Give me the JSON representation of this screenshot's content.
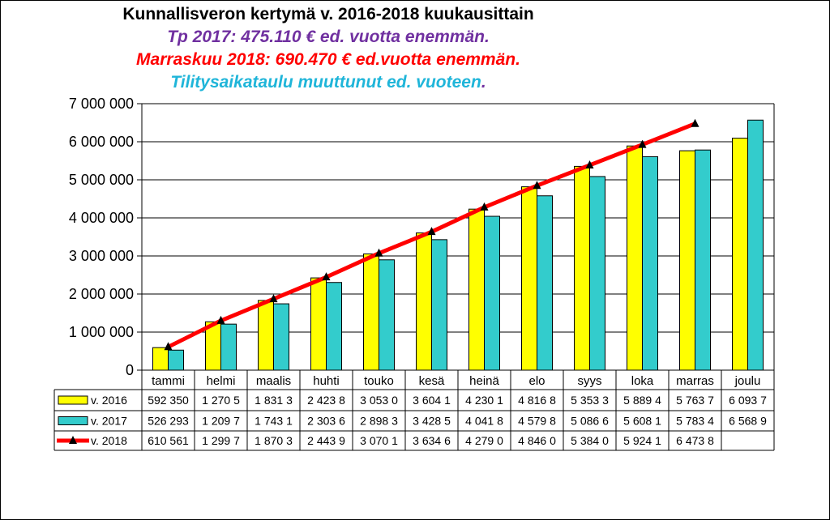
{
  "colors": {
    "series_2016": "#ffff00",
    "series_2017": "#33cccc",
    "series_2018_line": "#ff0000",
    "subtitle_1": "#7030a0",
    "subtitle_2": "#ff0000",
    "subtitle_3": "#1fb5d9"
  },
  "chart_data": {
    "type": "bar",
    "title": "Kunnallisveron kertymä v. 2016-2018 kuukausittain",
    "subtitles": [
      "Tp 2017: 475.110 € ed. vuotta enemmän.",
      "Marraskuu 2018: 690.470 € ed.vuotta enemmän.",
      "Tilitysaikataulu muuttunut ed. vuoteen"
    ],
    "subtitle_trailing_dot": ".",
    "categories": [
      "tammi",
      "helmi",
      "maalis",
      "huhti",
      "touko",
      "kesä",
      "heinä",
      "elo",
      "syys",
      "loka",
      "marras",
      "joulu"
    ],
    "ylim": [
      0,
      7000000
    ],
    "ytick_labels": [
      "0",
      "1 000 000",
      "2 000 000",
      "3 000 000",
      "4 000 000",
      "5 000 000",
      "6 000 000",
      "7 000 000"
    ],
    "grid": true,
    "legend": "data-table",
    "series": [
      {
        "name": "v. 2016",
        "kind": "bar",
        "values": [
          592350,
          1270500,
          1831300,
          2423800,
          3053000,
          3604100,
          4230100,
          4816800,
          5353300,
          5889400,
          5763700,
          6093700
        ],
        "table_cells": [
          "592 350",
          "1 270 5",
          "1 831 3",
          "2 423 8",
          "3 053 0",
          "3 604 1",
          "4 230 1",
          "4 816 8",
          "5 353 3",
          "5 889 4",
          "5 763 7",
          "6 093 7"
        ]
      },
      {
        "name": "v. 2017",
        "kind": "bar",
        "values": [
          526293,
          1209700,
          1743100,
          2303600,
          2898300,
          3428500,
          4041800,
          4579800,
          5086600,
          5608100,
          5783400,
          6568900
        ],
        "table_cells": [
          "526 293",
          "1 209 7",
          "1 743 1",
          "2 303 6",
          "2 898 3",
          "3 428 5",
          "4 041 8",
          "4 579 8",
          "5 086 6",
          "5 608 1",
          "5 783 4",
          "6 568 9"
        ]
      },
      {
        "name": "v. 2018",
        "kind": "line",
        "values": [
          610561,
          1299700,
          1870300,
          2443900,
          3070100,
          3634600,
          4279000,
          4846000,
          5384000,
          5924100,
          6473800,
          null
        ],
        "table_cells": [
          "610 561",
          "1 299 7",
          "1 870 3",
          "2 443 9",
          "3 070 1",
          "3 634 6",
          "4 279 0",
          "4 846 0",
          "5 384 0",
          "5 924 1",
          "6 473 8",
          ""
        ]
      }
    ]
  }
}
